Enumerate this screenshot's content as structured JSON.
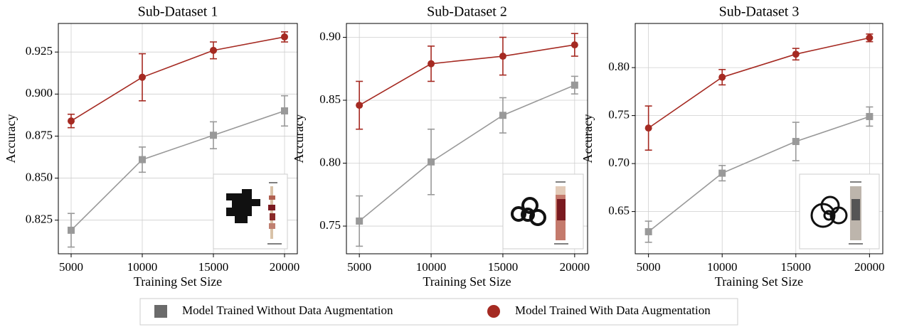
{
  "chart_data": [
    {
      "type": "line",
      "title": "Sub-Dataset 1",
      "xlabel": "Training Set Size",
      "ylabel": "Accuracy",
      "x": [
        5000,
        10000,
        15000,
        20000
      ],
      "xlim": [
        4100,
        20900
      ],
      "xticks": [
        5000,
        10000,
        15000,
        20000
      ],
      "ylim": [
        0.805,
        0.942
      ],
      "yticks": [
        0.825,
        {
          "value": 0.85,
          "label": "0.850"
        },
        0.875,
        {
          "value": 0.9,
          "label": "0.900"
        },
        0.925
      ],
      "grid": true,
      "series": [
        {
          "name": "Model Trained Without Data Augmentation",
          "color": "#999999",
          "legend_color": "#6b6b6b",
          "marker": "square",
          "values": [
            0.819,
            0.861,
            0.8755,
            0.89
          ],
          "errors": [
            0.01,
            0.0075,
            0.008,
            0.009
          ]
        },
        {
          "name": "Model Trained With Data Augmentation",
          "color": "#a52a22",
          "marker": "circle",
          "values": [
            0.884,
            0.91,
            0.926,
            0.934
          ],
          "errors": [
            0.004,
            0.014,
            0.005,
            0.003
          ]
        }
      ]
    },
    {
      "type": "line",
      "title": "Sub-Dataset 2",
      "xlabel": "Training Set Size",
      "ylabel": "Accuracy",
      "x": [
        5000,
        10000,
        15000,
        20000
      ],
      "xlim": [
        4100,
        20900
      ],
      "xticks": [
        5000,
        10000,
        15000,
        20000
      ],
      "ylim": [
        0.728,
        0.911
      ],
      "yticks": [
        0.75,
        {
          "value": 0.8,
          "label": "0.80"
        },
        0.85,
        {
          "value": 0.9,
          "label": "0.90"
        }
      ],
      "grid": true,
      "series": [
        {
          "name": "Model Trained Without Data Augmentation",
          "color": "#999999",
          "marker": "square",
          "values": [
            0.754,
            0.801,
            0.838,
            0.862
          ],
          "errors": [
            0.02,
            0.026,
            0.014,
            0.007
          ]
        },
        {
          "name": "Model Trained With Data Augmentation",
          "color": "#a52a22",
          "marker": "circle",
          "values": [
            0.846,
            0.879,
            0.885,
            0.894
          ],
          "errors": [
            0.019,
            0.014,
            0.015,
            0.009
          ]
        }
      ]
    },
    {
      "type": "line",
      "title": "Sub-Dataset 3",
      "xlabel": "Training Set Size",
      "ylabel": "Accuracy",
      "x": [
        5000,
        10000,
        15000,
        20000
      ],
      "xlim": [
        4100,
        20900
      ],
      "xticks": [
        5000,
        10000,
        15000,
        20000
      ],
      "ylim": [
        0.606,
        0.846
      ],
      "yticks": [
        0.65,
        {
          "value": 0.7,
          "label": "0.70"
        },
        0.75,
        {
          "value": 0.8,
          "label": "0.80"
        }
      ],
      "grid": true,
      "series": [
        {
          "name": "Model Trained Without Data Augmentation",
          "color": "#999999",
          "marker": "square",
          "values": [
            0.629,
            0.69,
            0.723,
            0.749
          ],
          "errors": [
            0.011,
            0.008,
            0.02,
            0.01
          ]
        },
        {
          "name": "Model Trained With Data Augmentation",
          "color": "#a52a22",
          "marker": "circle",
          "values": [
            0.737,
            0.79,
            0.814,
            0.831
          ],
          "errors": [
            0.023,
            0.008,
            0.006,
            0.004
          ]
        }
      ]
    }
  ]
}
